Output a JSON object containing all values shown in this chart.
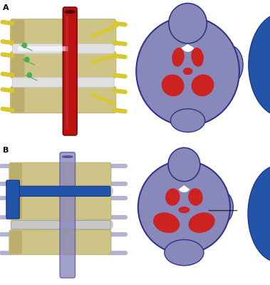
{
  "fig_width": 3.79,
  "fig_height": 4.0,
  "dpi": 100,
  "bg_color": "#ffffff",
  "label_A": "A",
  "label_B": "B",
  "label_fontsize": 8,
  "label_fontweight": "bold",
  "colors": {
    "bone": "#cfc488",
    "bone_dark": "#b8ad6a",
    "bone_shadow": "#a89850",
    "spinal_cord_red": "#bb1111",
    "spinal_cord_red_hl": "#cc3333",
    "nerve_yellow": "#d8c830",
    "nerve_green": "#44aa55",
    "disc_silver": "#c8c8c8",
    "disc_silver2": "#e0e0e0",
    "dark_outline": "#111111",
    "purple_cord": "#8888bb",
    "purple_cord2": "#9999cc",
    "purple_dark": "#5555aa",
    "purple_very_dark": "#333388",
    "blue_vertebra": "#2255aa",
    "blue_vertebra2": "#3366bb",
    "blue_dark": "#1a3a88",
    "red_matter": "#cc2222",
    "red_matter2": "#dd3333",
    "blue_disc": "#2255aa",
    "blue_disc_light": "#4477cc",
    "gray_shadow": "#c0c0c0",
    "white": "#ffffff",
    "near_black": "#1a1a1a"
  }
}
